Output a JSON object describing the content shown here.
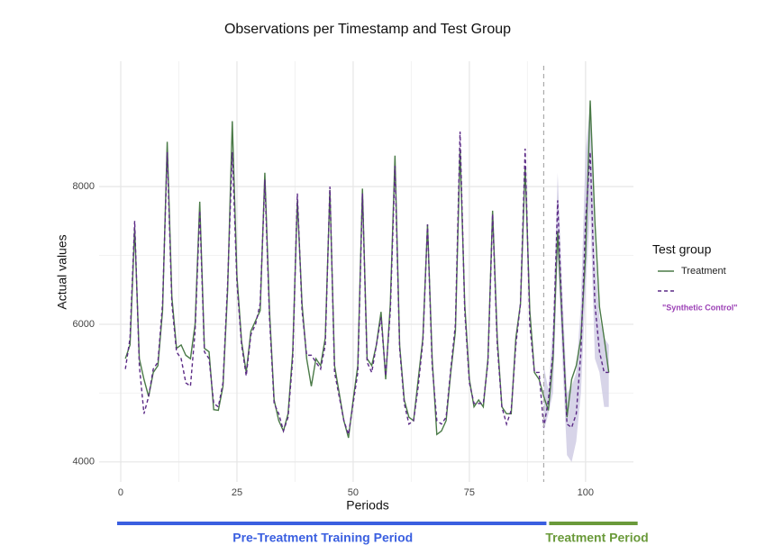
{
  "chart_data": {
    "type": "line",
    "title": "Observations per Timestamp and Test Group",
    "x_label": "Periods",
    "y_label": "Actual values",
    "x": [
      1,
      2,
      3,
      4,
      5,
      6,
      7,
      8,
      9,
      10,
      11,
      12,
      13,
      14,
      15,
      16,
      17,
      18,
      19,
      20,
      21,
      22,
      23,
      24,
      25,
      26,
      27,
      28,
      29,
      30,
      31,
      32,
      33,
      34,
      35,
      36,
      37,
      38,
      39,
      40,
      41,
      42,
      43,
      44,
      45,
      46,
      47,
      48,
      49,
      50,
      51,
      52,
      53,
      54,
      55,
      56,
      57,
      58,
      59,
      60,
      61,
      62,
      63,
      64,
      65,
      66,
      67,
      68,
      69,
      70,
      71,
      72,
      73,
      74,
      75,
      76,
      77,
      78,
      79,
      80,
      81,
      82,
      83,
      84,
      85,
      86,
      87,
      88,
      89,
      90,
      91,
      92,
      93,
      94,
      95,
      96,
      97,
      98,
      99,
      100,
      101,
      102,
      103,
      104,
      105
    ],
    "series": [
      {
        "name": "Treatment",
        "color": "#4a7a47",
        "linestyle": "solid",
        "values": [
          5500,
          5700,
          7400,
          5500,
          5200,
          4950,
          5300,
          5400,
          6200,
          8650,
          6400,
          5650,
          5700,
          5550,
          5500,
          6000,
          7780,
          5650,
          5600,
          4760,
          4750,
          5100,
          6500,
          8950,
          6700,
          5750,
          5300,
          5900,
          6050,
          6200,
          8200,
          6200,
          4900,
          4600,
          4450,
          4700,
          5600,
          7800,
          6300,
          5500,
          5100,
          5500,
          5400,
          5800,
          7950,
          5400,
          5000,
          4600,
          4350,
          4900,
          5400,
          7970,
          5500,
          5400,
          5700,
          6180,
          5200,
          6300,
          8450,
          5700,
          4900,
          4650,
          4600,
          5200,
          5800,
          7450,
          5500,
          4400,
          4450,
          4600,
          5300,
          5900,
          8550,
          6300,
          5200,
          4800,
          4900,
          4800,
          5500,
          7650,
          5800,
          4800,
          4700,
          4700,
          5800,
          6300,
          8300,
          6200,
          5300,
          5200,
          4950,
          4750,
          5500,
          7350,
          6000,
          4650,
          5200,
          5400,
          5800,
          7000,
          9250,
          7500,
          6250,
          5800,
          5300
        ]
      },
      {
        "name": "\"Synthetic Control\"",
        "color": "#5b2a86",
        "linestyle": "dashed",
        "band_color": "#c9c6e0",
        "values": [
          5350,
          5800,
          7500,
          5400,
          4700,
          4950,
          5350,
          5450,
          6300,
          8500,
          6300,
          5600,
          5500,
          5150,
          5100,
          5900,
          7650,
          5600,
          5500,
          4850,
          4800,
          5150,
          6600,
          8500,
          6600,
          5700,
          5250,
          5850,
          6000,
          6300,
          8100,
          6100,
          4850,
          4700,
          4450,
          4650,
          5500,
          7900,
          6200,
          5550,
          5550,
          5450,
          5350,
          5700,
          8000,
          5300,
          4950,
          4600,
          4400,
          4850,
          5300,
          7900,
          5450,
          5300,
          5700,
          6100,
          5250,
          6200,
          8300,
          5650,
          4850,
          4550,
          4600,
          5100,
          5750,
          7450,
          5400,
          4600,
          4550,
          4650,
          5350,
          6000,
          8800,
          6200,
          5150,
          4850,
          4850,
          4850,
          5450,
          7600,
          5700,
          4800,
          4550,
          4750,
          5700,
          6300,
          8550,
          6000,
          5300,
          5300,
          4500,
          4900,
          5600,
          7800,
          6000,
          4550,
          4500,
          4700,
          5600,
          7500,
          8500,
          6300,
          5600,
          5300,
          5300
        ],
        "lower": [
          null,
          null,
          null,
          null,
          null,
          null,
          null,
          null,
          null,
          null,
          null,
          null,
          null,
          null,
          null,
          null,
          null,
          null,
          null,
          null,
          null,
          null,
          null,
          null,
          null,
          null,
          null,
          null,
          null,
          null,
          null,
          null,
          null,
          null,
          null,
          null,
          null,
          null,
          null,
          null,
          null,
          null,
          null,
          null,
          null,
          null,
          null,
          null,
          null,
          null,
          null,
          null,
          null,
          null,
          null,
          null,
          null,
          null,
          null,
          null,
          null,
          null,
          null,
          null,
          null,
          null,
          null,
          null,
          null,
          null,
          null,
          null,
          null,
          null,
          null,
          null,
          null,
          null,
          null,
          null,
          null,
          null,
          null,
          null,
          null,
          null,
          null,
          null,
          null,
          null,
          4450,
          4700,
          5000,
          7000,
          5500,
          4100,
          4000,
          4300,
          5000,
          6500,
          7700,
          5500,
          5300,
          4800,
          4800
        ],
        "upper": [
          null,
          null,
          null,
          null,
          null,
          null,
          null,
          null,
          null,
          null,
          null,
          null,
          null,
          null,
          null,
          null,
          null,
          null,
          null,
          null,
          null,
          null,
          null,
          null,
          null,
          null,
          null,
          null,
          null,
          null,
          null,
          null,
          null,
          null,
          null,
          null,
          null,
          null,
          null,
          null,
          null,
          null,
          null,
          null,
          null,
          null,
          null,
          null,
          null,
          null,
          null,
          null,
          null,
          null,
          null,
          null,
          null,
          null,
          null,
          null,
          null,
          null,
          null,
          null,
          null,
          null,
          null,
          null,
          null,
          null,
          null,
          null,
          null,
          null,
          null,
          null,
          null,
          null,
          null,
          null,
          null,
          null,
          null,
          null,
          null,
          null,
          null,
          null,
          null,
          null,
          5400,
          5050,
          6000,
          8200,
          6500,
          5000,
          5100,
          5300,
          6300,
          8500,
          9200,
          7000,
          6100,
          5800,
          5700
        ]
      }
    ],
    "xlim": [
      -4.65,
      110.3
    ],
    "ylim": [
      3710,
      9820
    ],
    "xticks": [
      0,
      25,
      50,
      75,
      100
    ],
    "yticks": [
      4000,
      6000,
      8000
    ],
    "grid": true,
    "vline": 91,
    "legend_title": "Test group",
    "legend_position": "right",
    "annotations": [
      {
        "text": "Pre-Treatment Training Period",
        "color": "#3a5fe0"
      },
      {
        "text": "Treatment Period",
        "color": "#6a9a3a"
      }
    ]
  }
}
